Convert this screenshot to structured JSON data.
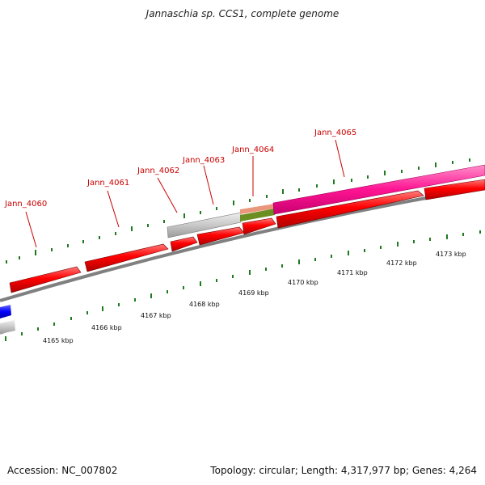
{
  "title": "Jannaschia sp. CCS1, complete genome",
  "footer": {
    "accession": "Accession: NC_007802",
    "summary": "Topology: circular; Length: 4,317,977 bp; Genes: 4,264"
  },
  "colors": {
    "forward_gene": "#ff0000",
    "reverse_gene": "#0000ff",
    "pseudo_gene": "#c8c8c8",
    "misc_feature": "#ff1493",
    "feature_green": "#6b8e23",
    "feature_salmon": "#e9967a",
    "backbone": "#808080",
    "tick": "#1f7a1f",
    "gene_label": "#cc0000"
  },
  "gene_labels": [
    "Jann_4060",
    "Jann_4061",
    "Jann_4062",
    "Jann_4063",
    "Jann_4064",
    "Jann_4065"
  ],
  "kbp_labels": [
    "4165 kbp",
    "4166 kbp",
    "4167 kbp",
    "4168 kbp",
    "4169 kbp",
    "4170 kbp",
    "4171 kbp",
    "4172 kbp",
    "4173 kbp"
  ]
}
